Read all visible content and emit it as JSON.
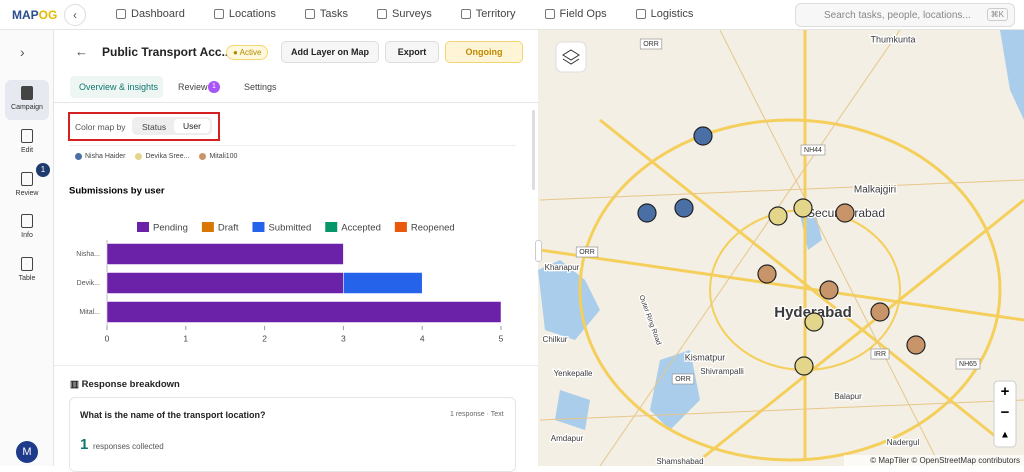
{
  "nav": {
    "logo": "MAP",
    "logo_accent": "OG",
    "items": [
      "Dashboard",
      "Locations",
      "Tasks",
      "Surveys",
      "Territory",
      "Field Ops",
      "Logistics"
    ],
    "search": "Search tasks, people, locations...",
    "shortcut": "⌘K"
  },
  "sidebar": {
    "items": [
      {
        "label": "Campaign"
      },
      {
        "label": "Edit"
      },
      {
        "label": "Review",
        "badge": "1"
      },
      {
        "label": "Info"
      },
      {
        "label": "Table"
      }
    ],
    "avatar": "M"
  },
  "panel": {
    "title": "Public Transport Acc...",
    "status": "Active",
    "buttons": [
      "Add Layer on Map",
      "Export",
      "Ongoing"
    ],
    "tabs": [
      {
        "label": "Overview & insights"
      },
      {
        "label": "Review",
        "badge": "1"
      },
      {
        "label": "Settings"
      }
    ],
    "color_map_label": "Color map by",
    "toggle": [
      "Status",
      "User"
    ],
    "users": [
      {
        "name": "Nisha Haider",
        "color": "#4a6fa5"
      },
      {
        "name": "Devika Sree...",
        "color": "#e3d58a"
      },
      {
        "name": "Mitali100",
        "color": "#c8956a"
      }
    ]
  },
  "chart_data": {
    "type": "bar",
    "orientation": "horizontal",
    "stacked": true,
    "title": "Submissions by user",
    "categories": [
      "Nisha...",
      "Devik...",
      "Mital..."
    ],
    "series": [
      {
        "name": "Pending",
        "color": "#6b21a8",
        "values": [
          3,
          3,
          5
        ]
      },
      {
        "name": "Draft",
        "color": "#d97706",
        "values": [
          0,
          0,
          0
        ]
      },
      {
        "name": "Submitted",
        "color": "#2563eb",
        "values": [
          0,
          1,
          0
        ]
      },
      {
        "name": "Accepted",
        "color": "#059669",
        "values": [
          0,
          0,
          0
        ]
      },
      {
        "name": "Reopened",
        "color": "#ea580c",
        "values": [
          0,
          0,
          0
        ]
      }
    ],
    "xlim": [
      0,
      5
    ],
    "xticks": [
      0,
      1,
      2,
      3,
      4,
      5
    ],
    "legend": "top"
  },
  "breakdown": {
    "title": "Response breakdown",
    "question": "What is the name of the transport location?",
    "meta": "1 response · Text",
    "count": "1",
    "count_label": "responses collected"
  },
  "map": {
    "labels": [
      "Thumkunta",
      "Malkajgiri",
      "Secunderabad",
      "Hyderabad",
      "Khanapur",
      "Chilkur",
      "Kismatpur",
      "Shivrampalli",
      "Yenkepalle",
      "Balapur",
      "Amdapur",
      "Nadergul",
      "Shamshabad",
      "ORR",
      "NH44",
      "ORR",
      "IRR",
      "NH65",
      "ORR",
      "Outer Ring Road"
    ],
    "attribution": "© MapTiler © OpenStreetMap contributors"
  }
}
